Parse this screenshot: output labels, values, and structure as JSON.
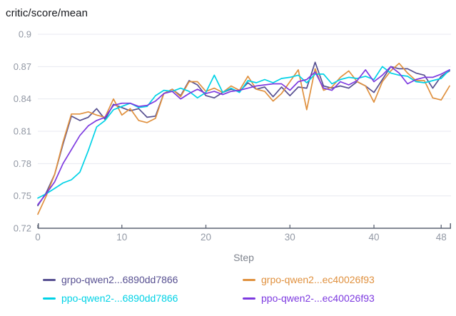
{
  "panel": {
    "title": "critic/score/mean"
  },
  "chart_data": {
    "type": "line",
    "title": "critic/score/mean",
    "xlabel": "Step",
    "ylabel": "",
    "xlim": [
      0,
      49
    ],
    "ylim": [
      0.72,
      0.9
    ],
    "x_ticks": [
      "0",
      "10",
      "20",
      "30",
      "40",
      "48"
    ],
    "y_ticks": [
      "0.9",
      "0.87",
      "0.84",
      "0.81",
      "0.78",
      "0.75",
      "0.72"
    ],
    "grid": true,
    "legend_position": "bottom",
    "style": {
      "grid_color": "#e8e9f0",
      "axis_color": "#5d6474",
      "tick_label_color": "#9298a4",
      "axis_title_color": "#7d828c",
      "line_width": 1.7
    },
    "x": [
      0,
      1,
      2,
      3,
      4,
      5,
      6,
      7,
      8,
      9,
      10,
      11,
      12,
      13,
      14,
      15,
      16,
      17,
      18,
      19,
      20,
      21,
      22,
      23,
      24,
      25,
      26,
      27,
      28,
      29,
      30,
      31,
      32,
      33,
      34,
      35,
      36,
      37,
      38,
      39,
      40,
      41,
      42,
      43,
      44,
      45,
      46,
      47,
      48,
      49
    ],
    "series": [
      {
        "name": "grpo-qwen2...6890dd7866",
        "color": "#575091",
        "values": [
          0.741,
          0.753,
          0.77,
          0.798,
          0.824,
          0.82,
          0.823,
          0.831,
          0.821,
          0.835,
          0.832,
          0.829,
          0.831,
          0.823,
          0.824,
          0.845,
          0.849,
          0.843,
          0.857,
          0.853,
          0.843,
          0.841,
          0.846,
          0.849,
          0.847,
          0.855,
          0.849,
          0.851,
          0.842,
          0.851,
          0.843,
          0.851,
          0.85,
          0.874,
          0.852,
          0.85,
          0.852,
          0.85,
          0.856,
          0.852,
          0.846,
          0.858,
          0.87,
          0.868,
          0.868,
          0.864,
          0.862,
          0.85,
          0.861,
          0.866
        ]
      },
      {
        "name": "grpo-qwen2...ec40026f93",
        "color": "#e0913f",
        "values": [
          0.733,
          0.75,
          0.77,
          0.8,
          0.826,
          0.826,
          0.828,
          0.825,
          0.823,
          0.84,
          0.825,
          0.831,
          0.82,
          0.818,
          0.822,
          0.845,
          0.849,
          0.842,
          0.856,
          0.856,
          0.847,
          0.85,
          0.846,
          0.852,
          0.848,
          0.861,
          0.849,
          0.847,
          0.838,
          0.845,
          0.856,
          0.867,
          0.83,
          0.868,
          0.848,
          0.851,
          0.86,
          0.866,
          0.856,
          0.852,
          0.837,
          0.856,
          0.866,
          0.873,
          0.864,
          0.857,
          0.857,
          0.841,
          0.839,
          0.852
        ]
      },
      {
        "name": "ppo-qwen2-...6890dd7866",
        "color": "#00d2e6",
        "values": [
          0.748,
          0.752,
          0.757,
          0.762,
          0.765,
          0.772,
          0.792,
          0.814,
          0.82,
          0.83,
          0.833,
          0.836,
          0.832,
          0.833,
          0.843,
          0.848,
          0.847,
          0.85,
          0.847,
          0.841,
          0.846,
          0.862,
          0.846,
          0.85,
          0.846,
          0.857,
          0.855,
          0.858,
          0.855,
          0.859,
          0.86,
          0.862,
          0.855,
          0.863,
          0.863,
          0.854,
          0.858,
          0.86,
          0.859,
          0.861,
          0.858,
          0.87,
          0.864,
          0.862,
          0.861,
          0.856,
          0.855,
          0.857,
          0.859,
          0.867
        ]
      },
      {
        "name": "ppo-qwen2-...ec40026f93",
        "color": "#7d3ae0",
        "values": [
          0.742,
          0.752,
          0.763,
          0.78,
          0.793,
          0.806,
          0.815,
          0.82,
          0.823,
          0.834,
          0.836,
          0.836,
          0.833,
          0.834,
          0.838,
          0.845,
          0.847,
          0.84,
          0.845,
          0.849,
          0.845,
          0.847,
          0.844,
          0.847,
          0.848,
          0.85,
          0.852,
          0.853,
          0.854,
          0.854,
          0.848,
          0.856,
          0.858,
          0.865,
          0.85,
          0.848,
          0.856,
          0.853,
          0.857,
          0.867,
          0.856,
          0.862,
          0.87,
          0.864,
          0.854,
          0.858,
          0.86,
          0.86,
          0.863,
          0.867
        ]
      }
    ]
  }
}
